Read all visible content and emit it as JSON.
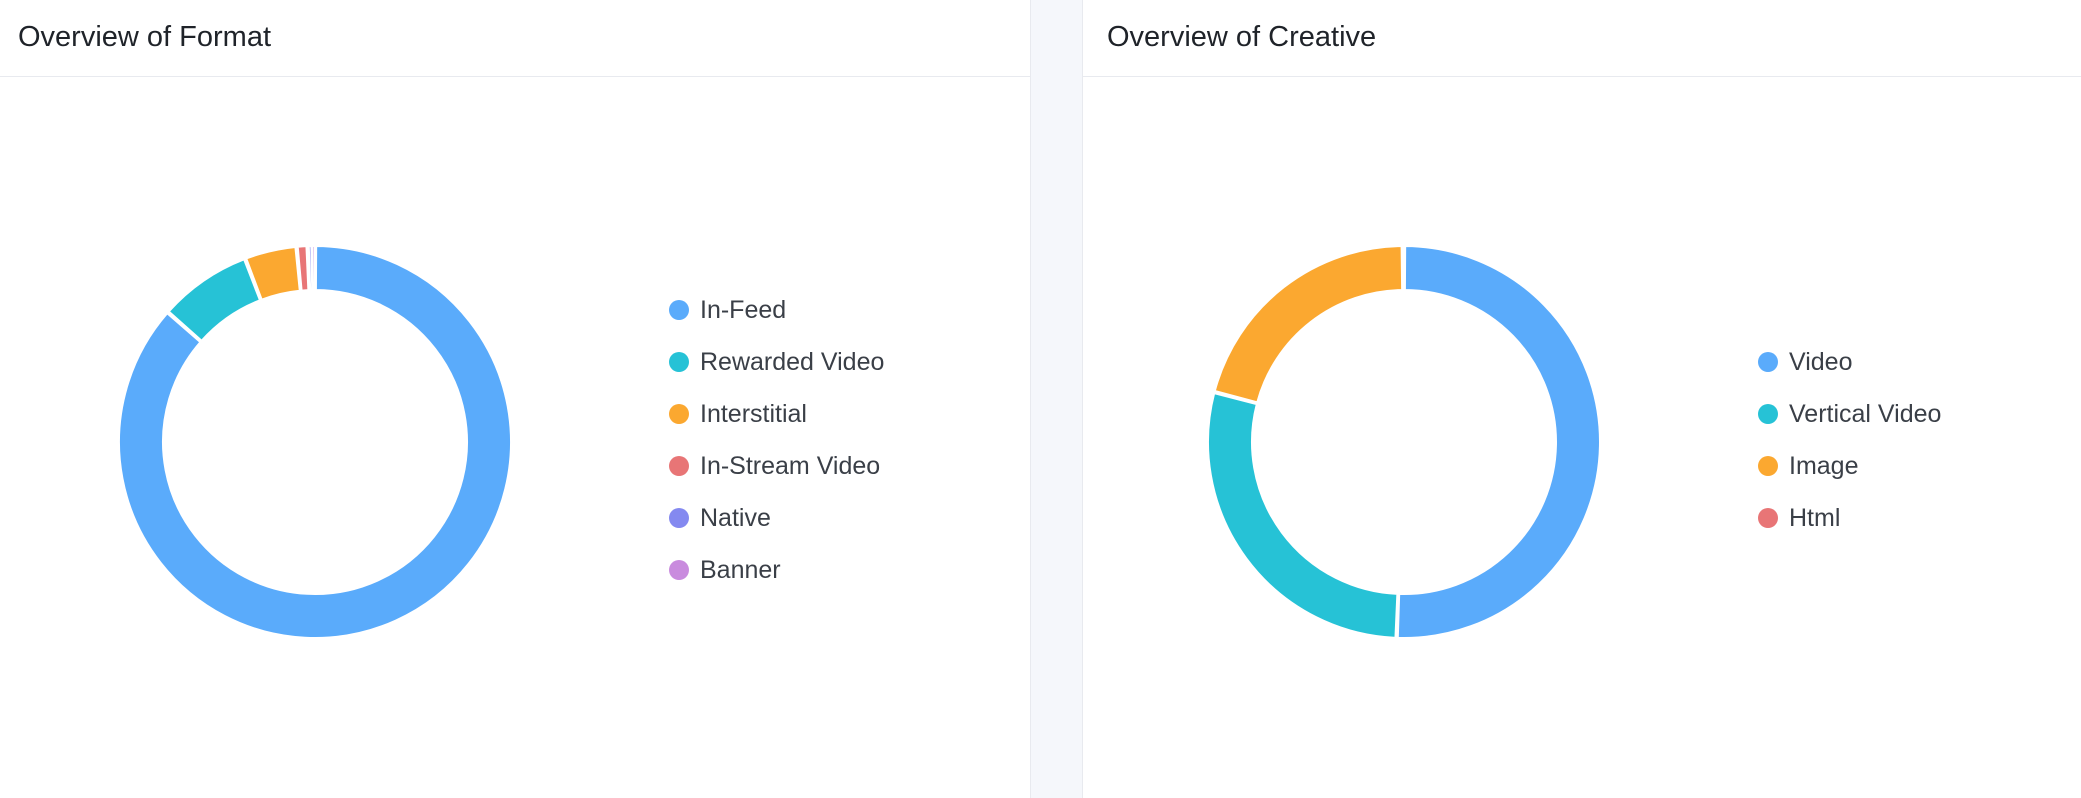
{
  "panels": {
    "format": {
      "title": "Overview of Format"
    },
    "creative": {
      "title": "Overview of Creative"
    }
  },
  "chart_data": [
    {
      "type": "pie",
      "variant": "donut",
      "title": "Overview of Format",
      "legend_position": "right",
      "categories": [
        "In-Feed",
        "Rewarded Video",
        "Interstitial",
        "In-Stream Video",
        "Native",
        "Banner"
      ],
      "values": [
        86.5,
        7.7,
        4.3,
        0.9,
        0.4,
        0.2
      ],
      "colors": [
        "#5aabfb",
        "#26c2d6",
        "#fba830",
        "#e87576",
        "#8489f0",
        "#c98bde"
      ]
    },
    {
      "type": "pie",
      "variant": "donut",
      "title": "Overview of Creative",
      "legend_position": "right",
      "categories": [
        "Video",
        "Vertical Video",
        "Image",
        "Html"
      ],
      "values": [
        50.6,
        28.5,
        20.8,
        0.1
      ],
      "colors": [
        "#5aabfb",
        "#26c2d6",
        "#fba830",
        "#e87576"
      ]
    }
  ]
}
